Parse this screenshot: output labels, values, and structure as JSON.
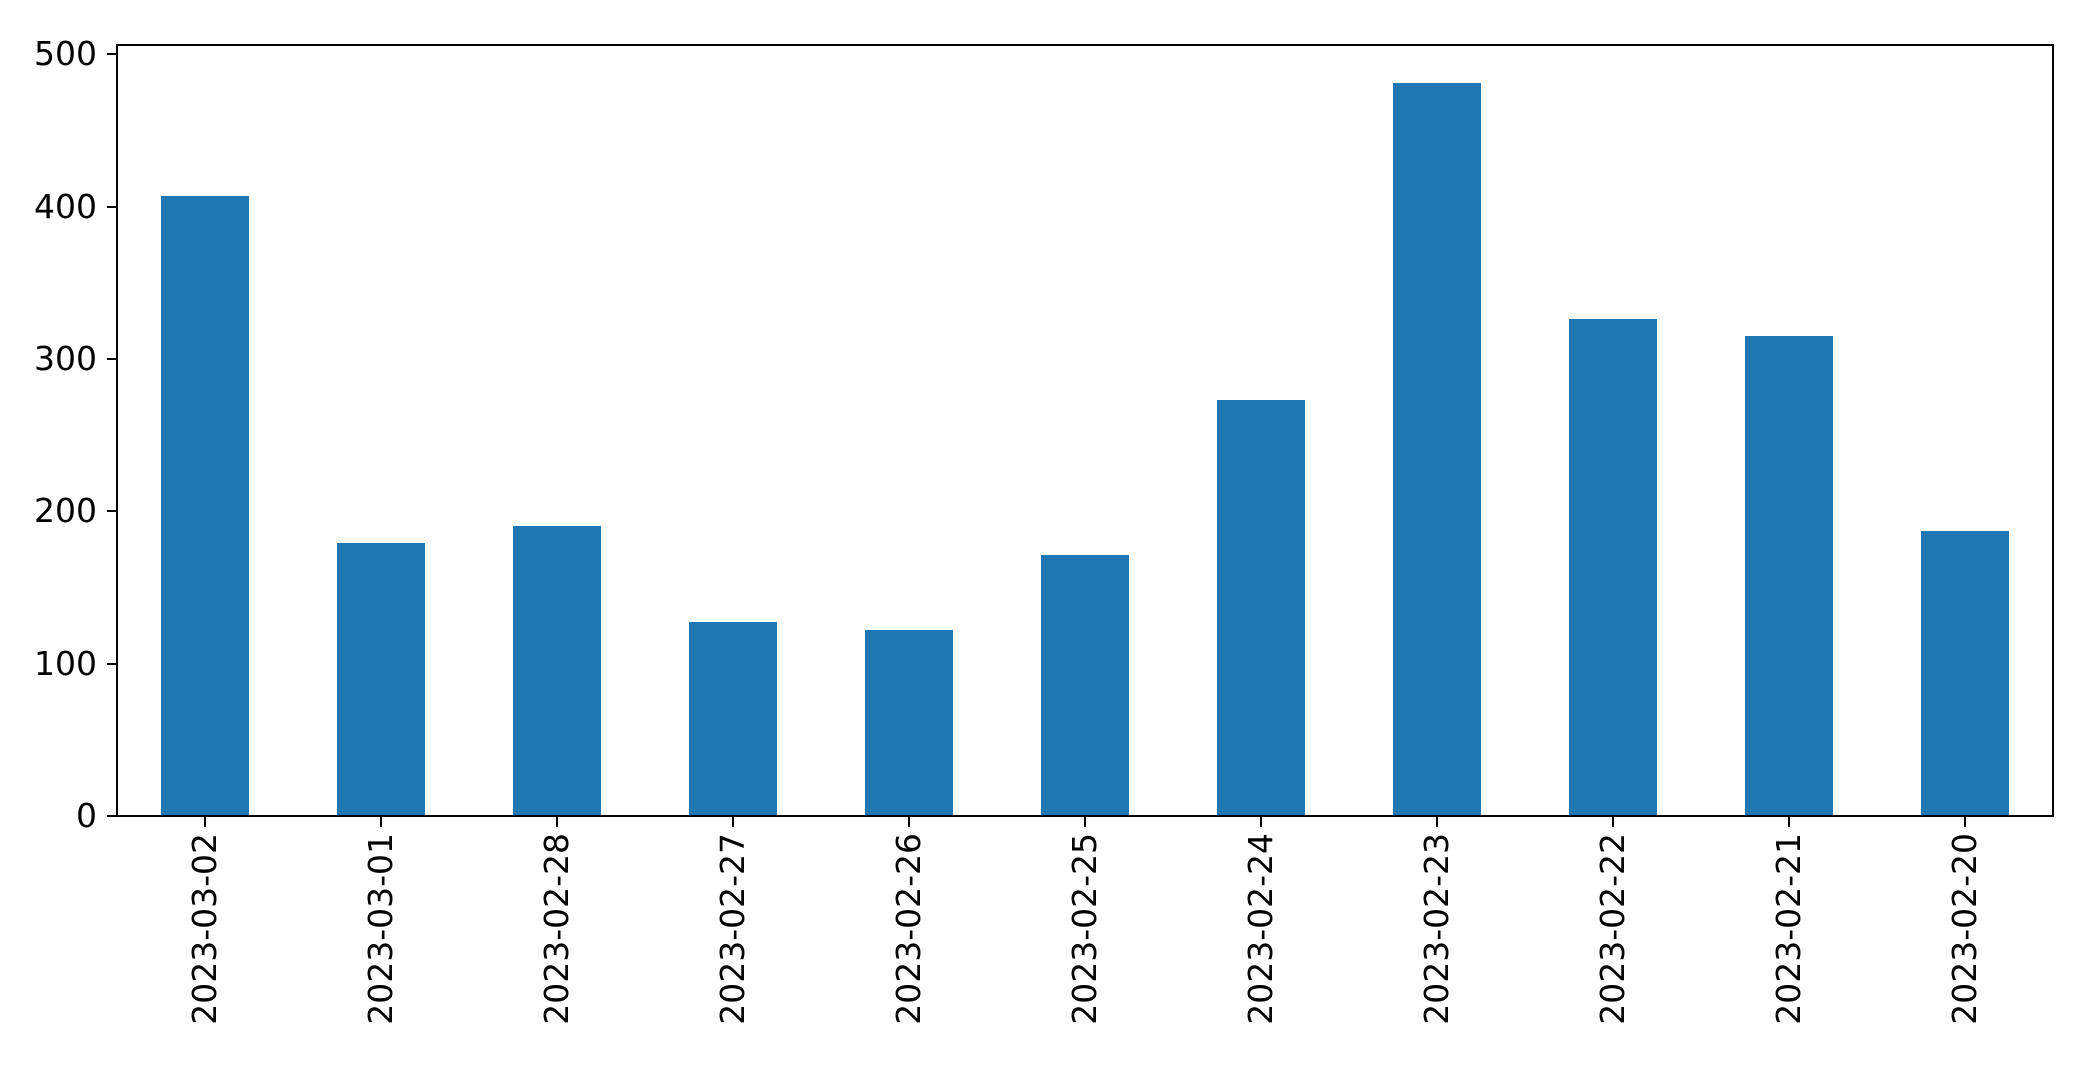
{
  "chart_data": {
    "type": "bar",
    "categories": [
      "2023-03-02",
      "2023-03-01",
      "2023-02-28",
      "2023-02-27",
      "2023-02-26",
      "2023-02-25",
      "2023-02-24",
      "2023-02-23",
      "2023-02-22",
      "2023-02-21",
      "2023-02-20"
    ],
    "values": [
      407,
      179,
      190,
      127,
      122,
      171,
      273,
      481,
      326,
      315,
      187
    ],
    "title": "",
    "xlabel": "",
    "ylabel": "",
    "ylim": [
      0,
      506
    ],
    "yticks": [
      0,
      100,
      200,
      300,
      400,
      500
    ],
    "bar_width_fraction": 0.5,
    "bar_color": "#1f77b4",
    "axis_color": "#000000",
    "background_color": "#ffffff",
    "grid": false,
    "legend_position": "none",
    "x_tick_label_rotation_deg": 90
  }
}
